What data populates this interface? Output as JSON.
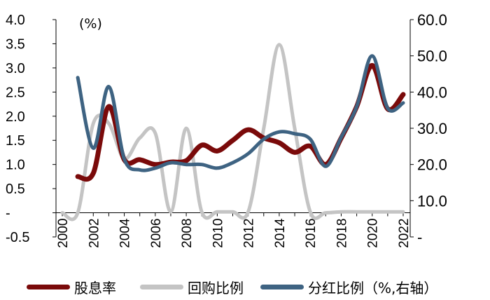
{
  "chart_data": {
    "type": "line",
    "title": "",
    "unit_label": "(%)",
    "x": [
      2000,
      2001,
      2002,
      2003,
      2004,
      2005,
      2006,
      2007,
      2008,
      2009,
      2010,
      2011,
      2012,
      2013,
      2014,
      2015,
      2016,
      2017,
      2018,
      2019,
      2020,
      2021,
      2022
    ],
    "x_tick_labels": [
      "2000",
      "2002",
      "2004",
      "2006",
      "2008",
      "2010",
      "2012",
      "2014",
      "2016",
      "2018",
      "2020",
      "2022"
    ],
    "y_left": {
      "ylim": [
        -0.5,
        4.0
      ],
      "tick_labels": [
        "4.0",
        "3.5",
        "3.0",
        "2.5",
        "2.0",
        "1.5",
        "1.0",
        "0.5",
        "-",
        "-0.5"
      ]
    },
    "y_right": {
      "ylim": [
        0,
        60
      ],
      "tick_labels": [
        "60.0",
        "50.0",
        "40.0",
        "30.0",
        "20.0",
        "10.0",
        "-"
      ]
    },
    "series": [
      {
        "name": "股息率",
        "axis": "left",
        "color": "#7a0a0a",
        "values": [
          null,
          0.75,
          0.82,
          2.2,
          1.1,
          1.1,
          1.0,
          1.05,
          1.08,
          1.4,
          1.28,
          1.5,
          1.72,
          1.55,
          1.45,
          1.25,
          1.38,
          1.0,
          1.55,
          2.2,
          3.05,
          2.15,
          2.45
        ]
      },
      {
        "name": "回购比例",
        "axis": "left",
        "color": "#c4c4c4",
        "values": [
          0.0,
          0.0,
          1.85,
          1.85,
          1.12,
          1.55,
          1.65,
          0.02,
          1.75,
          0.02,
          0.02,
          0.02,
          0.02,
          1.75,
          3.48,
          1.75,
          0.02,
          0.0,
          0.02,
          0.02,
          0.02,
          0.02,
          0.02
        ]
      },
      {
        "name": "分红比例（%,右轴）",
        "axis": "right",
        "color": "#3e6382",
        "values": [
          null,
          44.0,
          24.5,
          41.5,
          21.5,
          18.5,
          19.0,
          20.5,
          20.0,
          20.0,
          19.0,
          20.5,
          23.0,
          27.0,
          29.0,
          28.5,
          27.0,
          19.5,
          27.5,
          36.0,
          50.0,
          35.5,
          37.0
        ]
      }
    ],
    "grid": false,
    "legend_position": "bottom"
  },
  "legend": [
    {
      "label": "股息率",
      "color": "#7a0a0a"
    },
    {
      "label": "回购比例",
      "color": "#c4c4c4"
    },
    {
      "label": "分红比例（%,右轴）",
      "color": "#3e6382"
    }
  ]
}
